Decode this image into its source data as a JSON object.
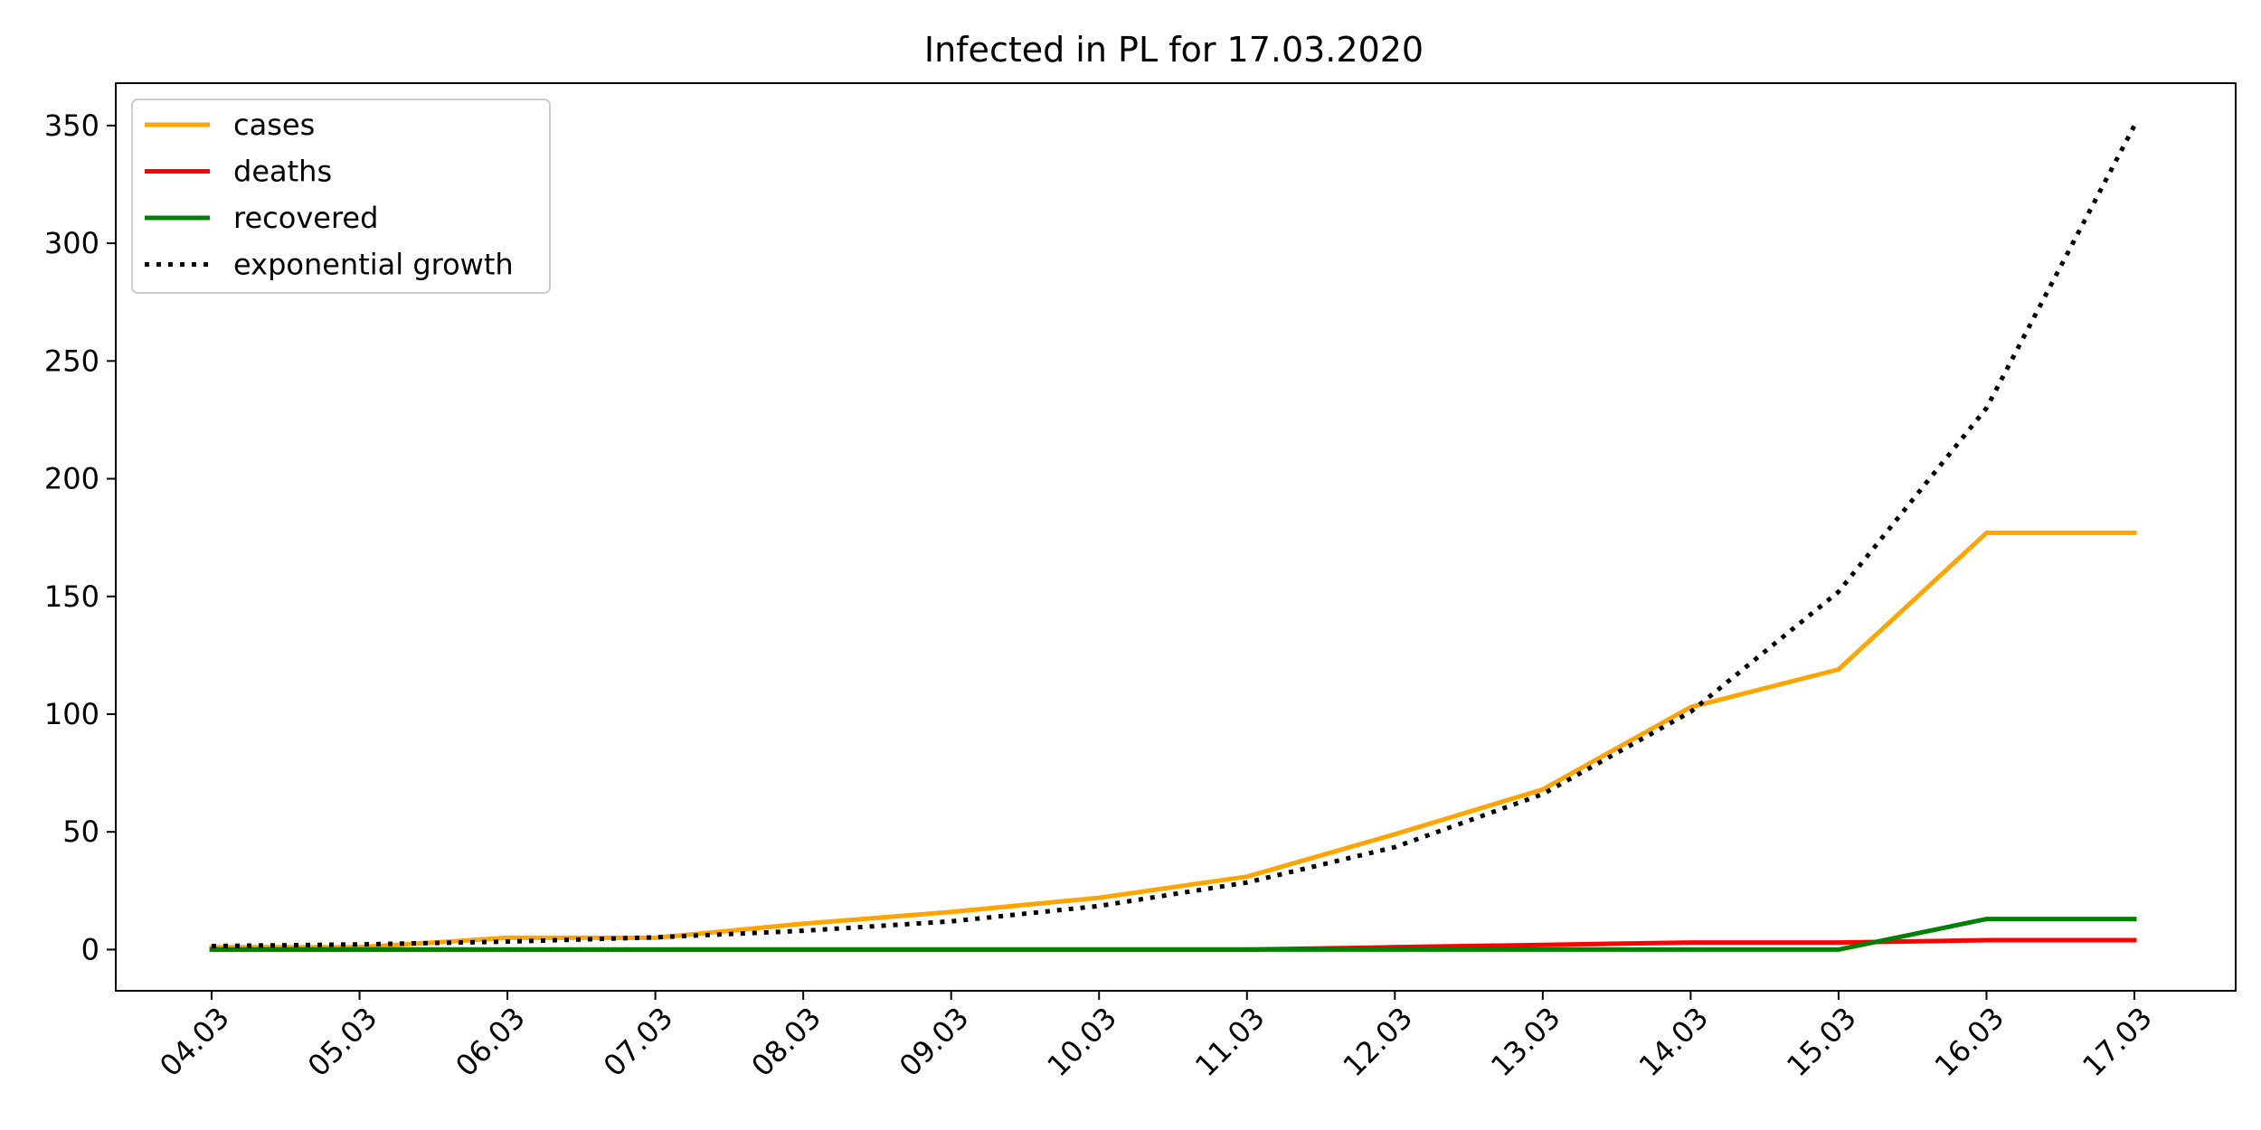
{
  "chart_data": {
    "type": "line",
    "title": "Infected in PL for 17.03.2020",
    "xlabel": "",
    "ylabel": "",
    "categories": [
      "04.03",
      "05.03",
      "06.03",
      "07.03",
      "08.03",
      "09.03",
      "10.03",
      "11.03",
      "12.03",
      "13.03",
      "14.03",
      "15.03",
      "16.03",
      "17.03"
    ],
    "yticks": [
      0,
      50,
      100,
      150,
      200,
      250,
      300,
      350
    ],
    "ylim": [
      -17.5,
      368
    ],
    "grid": false,
    "legend_position": "top-left",
    "series": [
      {
        "name": "cases",
        "color": "#FFA500",
        "style": "solid",
        "values": [
          1,
          1,
          5,
          5,
          11,
          16,
          22,
          31,
          49,
          68,
          103,
          119,
          177,
          177
        ]
      },
      {
        "name": "deaths",
        "color": "#FF0000",
        "style": "solid",
        "values": [
          0,
          0,
          0,
          0,
          0,
          0,
          0,
          0,
          1,
          2,
          3,
          3,
          4,
          4
        ]
      },
      {
        "name": "recovered",
        "color": "#008000",
        "style": "solid",
        "values": [
          0,
          0,
          0,
          0,
          0,
          0,
          0,
          0,
          0,
          0,
          0,
          0,
          13,
          13
        ]
      },
      {
        "name": "exponential growth",
        "color": "#000000",
        "style": "dotted",
        "values": [
          1.5,
          2.2,
          3.4,
          5.2,
          8,
          12,
          18.5,
          28.5,
          43.5,
          66,
          101,
          152,
          230,
          350
        ]
      }
    ]
  }
}
